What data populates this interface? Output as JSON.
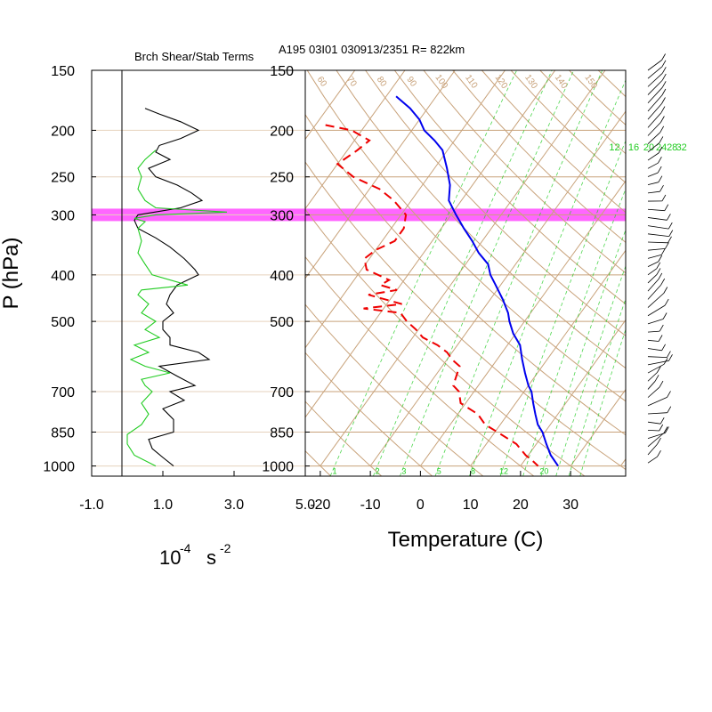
{
  "header": {
    "left_title": "Brch Shear/Stab Terms",
    "right_title": "A195 03I01 030913/2351 R= 822km"
  },
  "y_axis": {
    "label": "P (hPa)",
    "pressure_levels": [
      150,
      200,
      250,
      300,
      400,
      500,
      700,
      850,
      1000
    ],
    "tick_labels": [
      "150",
      "200",
      "250",
      "300",
      "400",
      "500",
      "700",
      "850",
      "1000"
    ]
  },
  "left_panel": {
    "x_tick_labels": [
      "-1.0",
      "1.0",
      "3.0",
      "5.0"
    ],
    "units_base": "10",
    "units_exp": "-4",
    "units_s": "s",
    "units_s_exp": "-2"
  },
  "right_panel": {
    "xlabel": "Temperature (C)",
    "x_tick_labels": [
      "-20",
      "-10",
      "0",
      "10",
      "20",
      "30"
    ],
    "mixing_ratio_top_labels": [
      "12",
      "16",
      "20",
      "24",
      "28",
      "32"
    ],
    "mixing_ratio_bottom_labels": [
      "1",
      "2",
      "3",
      "5",
      "8",
      "12",
      "20"
    ],
    "dry_adiabat_labels": [
      "50",
      "60",
      "70",
      "80",
      "90",
      "100",
      "110",
      "120",
      "130",
      "140",
      "150"
    ]
  },
  "highlight": {
    "pressure": 300,
    "color": "#ff33ff"
  },
  "colors": {
    "temperature": "#0000ee",
    "dewpoint": "#ee0000",
    "shear_term": "#000000",
    "stability_term": "#22cc22",
    "isobar_isotherm": "#c8a27a",
    "mixing_ratio": "#22cc22"
  },
  "chart_data": [
    {
      "type": "line",
      "title": "Brch Shear/Stab Terms",
      "xlabel": "10^-4 s^-2",
      "ylabel": "P (hPa)",
      "xlim": [
        -1.0,
        5.0
      ],
      "ylim": [
        1000,
        150
      ],
      "y_scale": "log",
      "series": [
        {
          "color": "#000000",
          "pressure": [
            180,
            185,
            192,
            200,
            208,
            215,
            222,
            230,
            240,
            250,
            260,
            270,
            280,
            290,
            300,
            308,
            320,
            335,
            350,
            370,
            390,
            400,
            420,
            440,
            460,
            480,
            500,
            520,
            540,
            560,
            580,
            600,
            620,
            650,
            680,
            700,
            730,
            760,
            800,
            850,
            880,
            920,
            960,
            1000
          ],
          "values": [
            0.5,
            0.9,
            1.5,
            2.0,
            1.5,
            0.9,
            0.8,
            1.2,
            0.6,
            0.8,
            1.4,
            1.8,
            2.1,
            1.5,
            0.3,
            0.2,
            0.3,
            0.8,
            1.2,
            1.6,
            1.9,
            2.0,
            1.4,
            1.2,
            1.1,
            1.3,
            1.0,
            1.0,
            1.2,
            1.2,
            2.0,
            2.3,
            0.9,
            1.4,
            1.9,
            1.2,
            1.6,
            1.0,
            1.3,
            1.3,
            0.6,
            0.7,
            1.0,
            1.3
          ]
        },
        {
          "color": "#22cc22",
          "pressure": [
            220,
            230,
            240,
            250,
            265,
            280,
            290,
            296,
            300,
            305,
            310,
            320,
            340,
            360,
            380,
            400,
            420,
            430,
            440,
            460,
            480,
            500,
            520,
            540,
            560,
            580,
            600,
            620,
            640,
            660,
            680,
            700,
            740,
            780,
            820,
            860,
            900,
            950,
            1000
          ],
          "values": [
            0.8,
            0.5,
            0.3,
            0.4,
            0.3,
            0.5,
            0.8,
            2.8,
            0.8,
            0.2,
            0.5,
            0.3,
            0.4,
            0.3,
            0.5,
            0.7,
            1.7,
            0.4,
            0.3,
            0.6,
            0.4,
            0.8,
            0.5,
            0.9,
            0.2,
            0.6,
            0.1,
            0.5,
            1.2,
            0.4,
            0.5,
            0.7,
            0.4,
            0.6,
            0.4,
            0.0,
            0.0,
            0.2,
            0.8
          ]
        }
      ]
    },
    {
      "type": "line",
      "xlabel": "Temperature (C)",
      "ylabel": "P (hPa)",
      "xlim": [
        -23,
        41
      ],
      "ylim": [
        1000,
        150
      ],
      "y_scale": "log",
      "skew_t": true,
      "series": [
        {
          "color": "#0000ee",
          "pressure": [
            170,
            180,
            190,
            200,
            210,
            220,
            240,
            260,
            280,
            300,
            320,
            340,
            360,
            380,
            400,
            420,
            450,
            480,
            500,
            530,
            560,
            600,
            640,
            680,
            700,
            740,
            780,
            820,
            850,
            900,
            950,
            1000
          ],
          "values": [
            -58.0,
            -53.5,
            -50.0,
            -47.5,
            -44.0,
            -41.0,
            -37.5,
            -34.5,
            -32.5,
            -29.0,
            -25.5,
            -22.0,
            -19.0,
            -15.5,
            -13.5,
            -11.0,
            -7.5,
            -4.5,
            -3.0,
            -0.5,
            2.5,
            5.0,
            7.5,
            10.0,
            11.5,
            13.5,
            15.5,
            17.5,
            19.5,
            22.0,
            24.5,
            27.5
          ]
        },
        {
          "color": "#ee0000",
          "pressure": [
            195,
            200,
            210,
            220,
            235,
            250,
            265,
            280,
            300,
            320,
            340,
            355,
            370,
            390,
            410,
            420,
            430,
            440,
            460,
            470,
            480,
            500,
            520,
            540,
            560,
            580,
            600,
            620,
            640,
            680,
            700,
            740,
            780,
            820,
            850,
            900,
            950,
            980,
            1000
          ],
          "values": [
            -68.0,
            -62.0,
            -57.0,
            -58.0,
            -60.0,
            -55.0,
            -48.0,
            -43.5,
            -39.0,
            -37.5,
            -37.5,
            -40.0,
            -41.0,
            -39.0,
            -33.0,
            -34.0,
            -30.0,
            -35.0,
            -27.0,
            -34.0,
            -26.0,
            -23.5,
            -20.5,
            -18.0,
            -14.0,
            -11.0,
            -9.0,
            -6.5,
            -6.0,
            -5.0,
            -3.0,
            -1.0,
            4.0,
            7.0,
            10.5,
            16.0,
            19.5,
            22.0,
            23.5
          ]
        }
      ]
    }
  ]
}
